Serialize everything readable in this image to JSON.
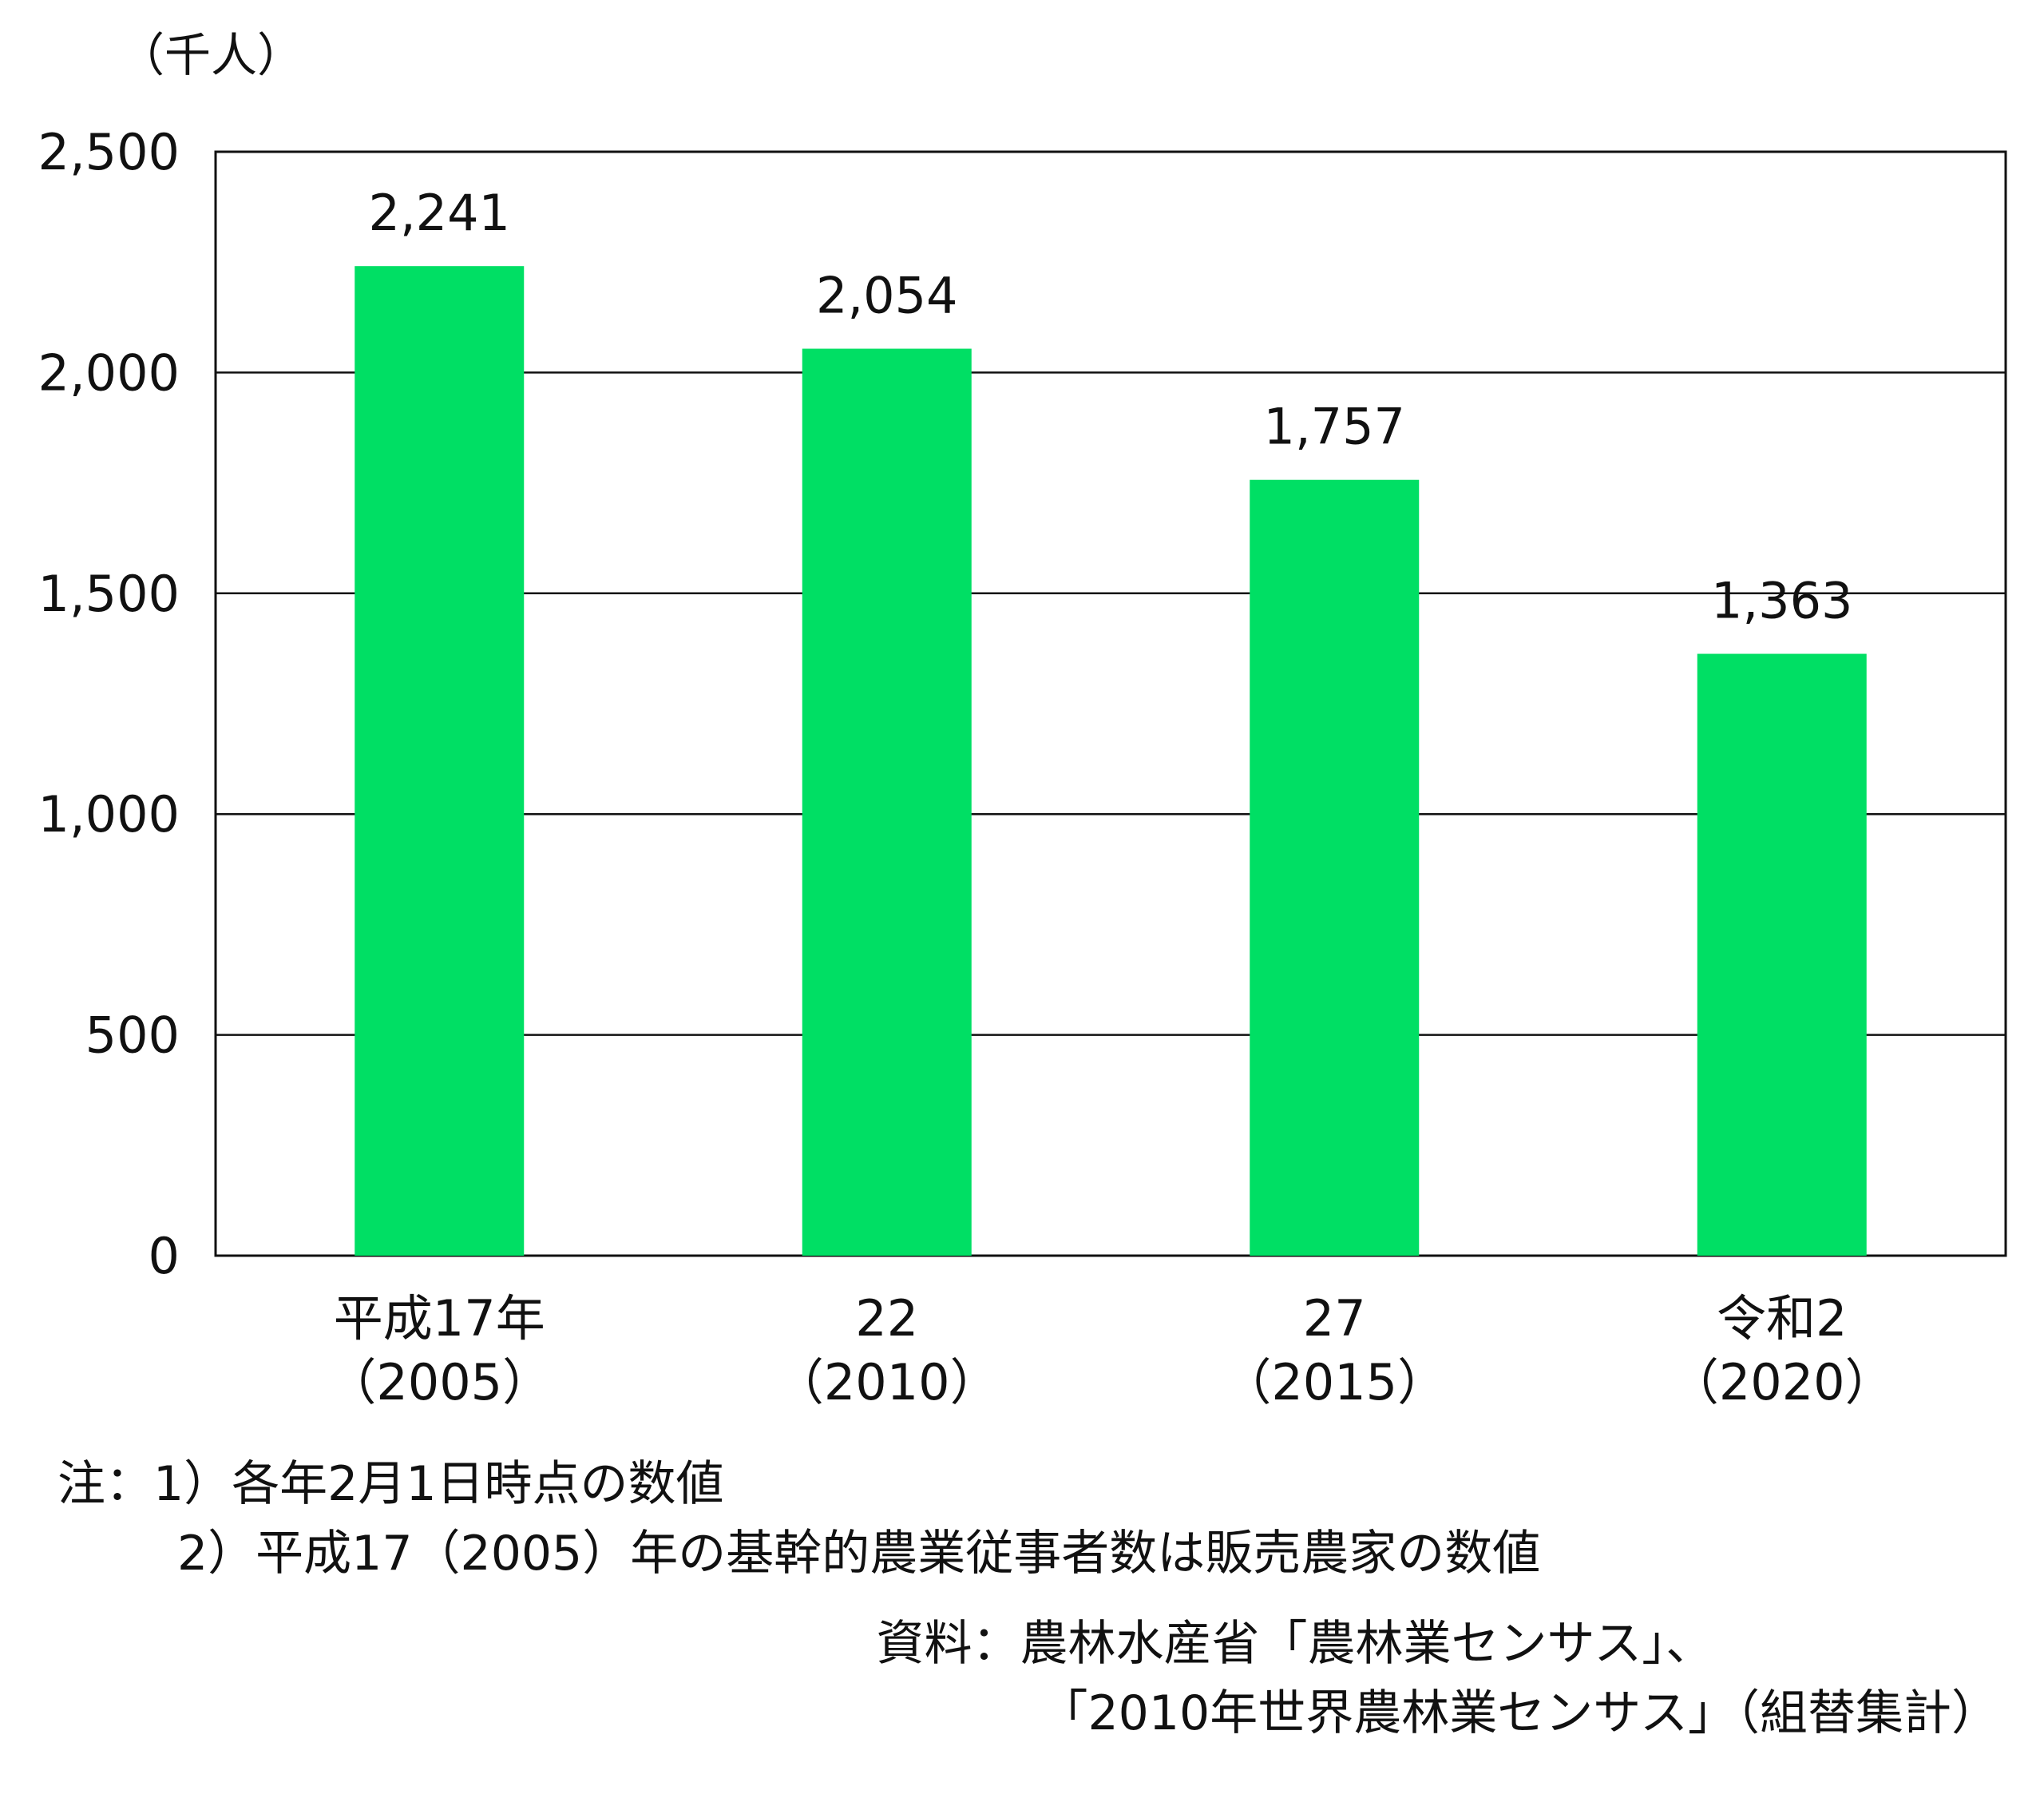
{
  "colors": {
    "bar": "#00DF64",
    "axis": "#111111",
    "text": "#111111"
  },
  "chart_data": {
    "type": "bar",
    "unit_label": "（千人）",
    "categories": [
      {
        "line1": "平成17年",
        "line2": "（2005）"
      },
      {
        "line1": "22",
        "line2": "（2010）"
      },
      {
        "line1": "27",
        "line2": "（2015）"
      },
      {
        "line1": "令和2",
        "line2": "（2020）"
      }
    ],
    "values": [
      2241,
      2054,
      1757,
      1363
    ],
    "value_labels": [
      "2,241",
      "2,054",
      "1,757",
      "1,363"
    ],
    "ylim": [
      0,
      2500
    ],
    "yticks": [
      0,
      500,
      1000,
      1500,
      2000,
      2500
    ],
    "ytick_labels": [
      "0",
      "500",
      "1,000",
      "1,500",
      "2,000",
      "2,500"
    ],
    "grid": true
  },
  "notes": [
    "注：1）各年2月1日時点の数値",
    "2）平成17（2005）年の基幹的農業従事者数は販売農家の数値"
  ],
  "source": [
    "資料：農林水産省「農林業センサス」、",
    "「2010年世界農林業センサス」（組替集計）"
  ]
}
